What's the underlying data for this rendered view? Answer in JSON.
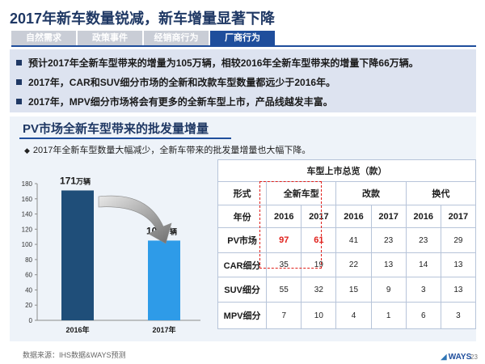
{
  "title": "2017年新车数量锐减，新车增量显著下降",
  "tabs": [
    {
      "label": "自然需求",
      "active": false
    },
    {
      "label": "政策事件",
      "active": false
    },
    {
      "label": "经销商行为",
      "active": false
    },
    {
      "label": "厂商行为",
      "active": true
    }
  ],
  "bullets": [
    "预计2017年全新车型带来的增量为105万辆，相较2016年全新车型带来的增量下降66万辆。",
    "2017年，CAR和SUV细分市场的全新和改款车型数量都远少于2016年。",
    "2017年，MPV细分市场将会有更多的全新车型上市，产品线越发丰富。"
  ],
  "panel": {
    "title": "PV市场全新车型带来的批发量增量",
    "note": "2017年全新车型数量大幅减少，全新车带来的批发量增量也大幅下降。"
  },
  "colors": {
    "bar_2016": "#1f4e79",
    "bar_2017": "#2e9be8",
    "accent": "#1f4e9c",
    "highlight": "#e0201b"
  },
  "chart_data": {
    "type": "bar",
    "categories": [
      "2016年",
      "2017年"
    ],
    "values": [
      171,
      105
    ],
    "value_labels": [
      {
        "num": "171",
        "unit": "万辆"
      },
      {
        "num": "105",
        "unit": "万辆"
      }
    ],
    "ylim": [
      0,
      180
    ],
    "yticks": [
      0,
      20,
      40,
      60,
      80,
      100,
      120,
      140,
      160,
      180
    ],
    "grid": false,
    "title": "",
    "xlabel": "",
    "ylabel": ""
  },
  "table": {
    "caption": "车型上市总览（款）",
    "header1": [
      "形式",
      "全新车型",
      "改款",
      "换代"
    ],
    "header2": [
      "年份",
      "2016",
      "2017",
      "2016",
      "2017",
      "2016",
      "2017"
    ],
    "rows": [
      {
        "label": "PV市场",
        "cells": [
          "97",
          "61",
          "41",
          "23",
          "23",
          "29"
        ]
      },
      {
        "label": "CAR细分",
        "cells": [
          "35",
          "19",
          "22",
          "13",
          "14",
          "13"
        ]
      },
      {
        "label": "SUV细分",
        "cells": [
          "55",
          "32",
          "15",
          "9",
          "3",
          "13"
        ]
      },
      {
        "label": "MPV细分",
        "cells": [
          "7",
          "10",
          "4",
          "1",
          "6",
          "3"
        ]
      }
    ]
  },
  "footer": {
    "source": "数据来源：IHS数据&WAYS预测",
    "logo_text": "WAYS",
    "page": "23"
  }
}
